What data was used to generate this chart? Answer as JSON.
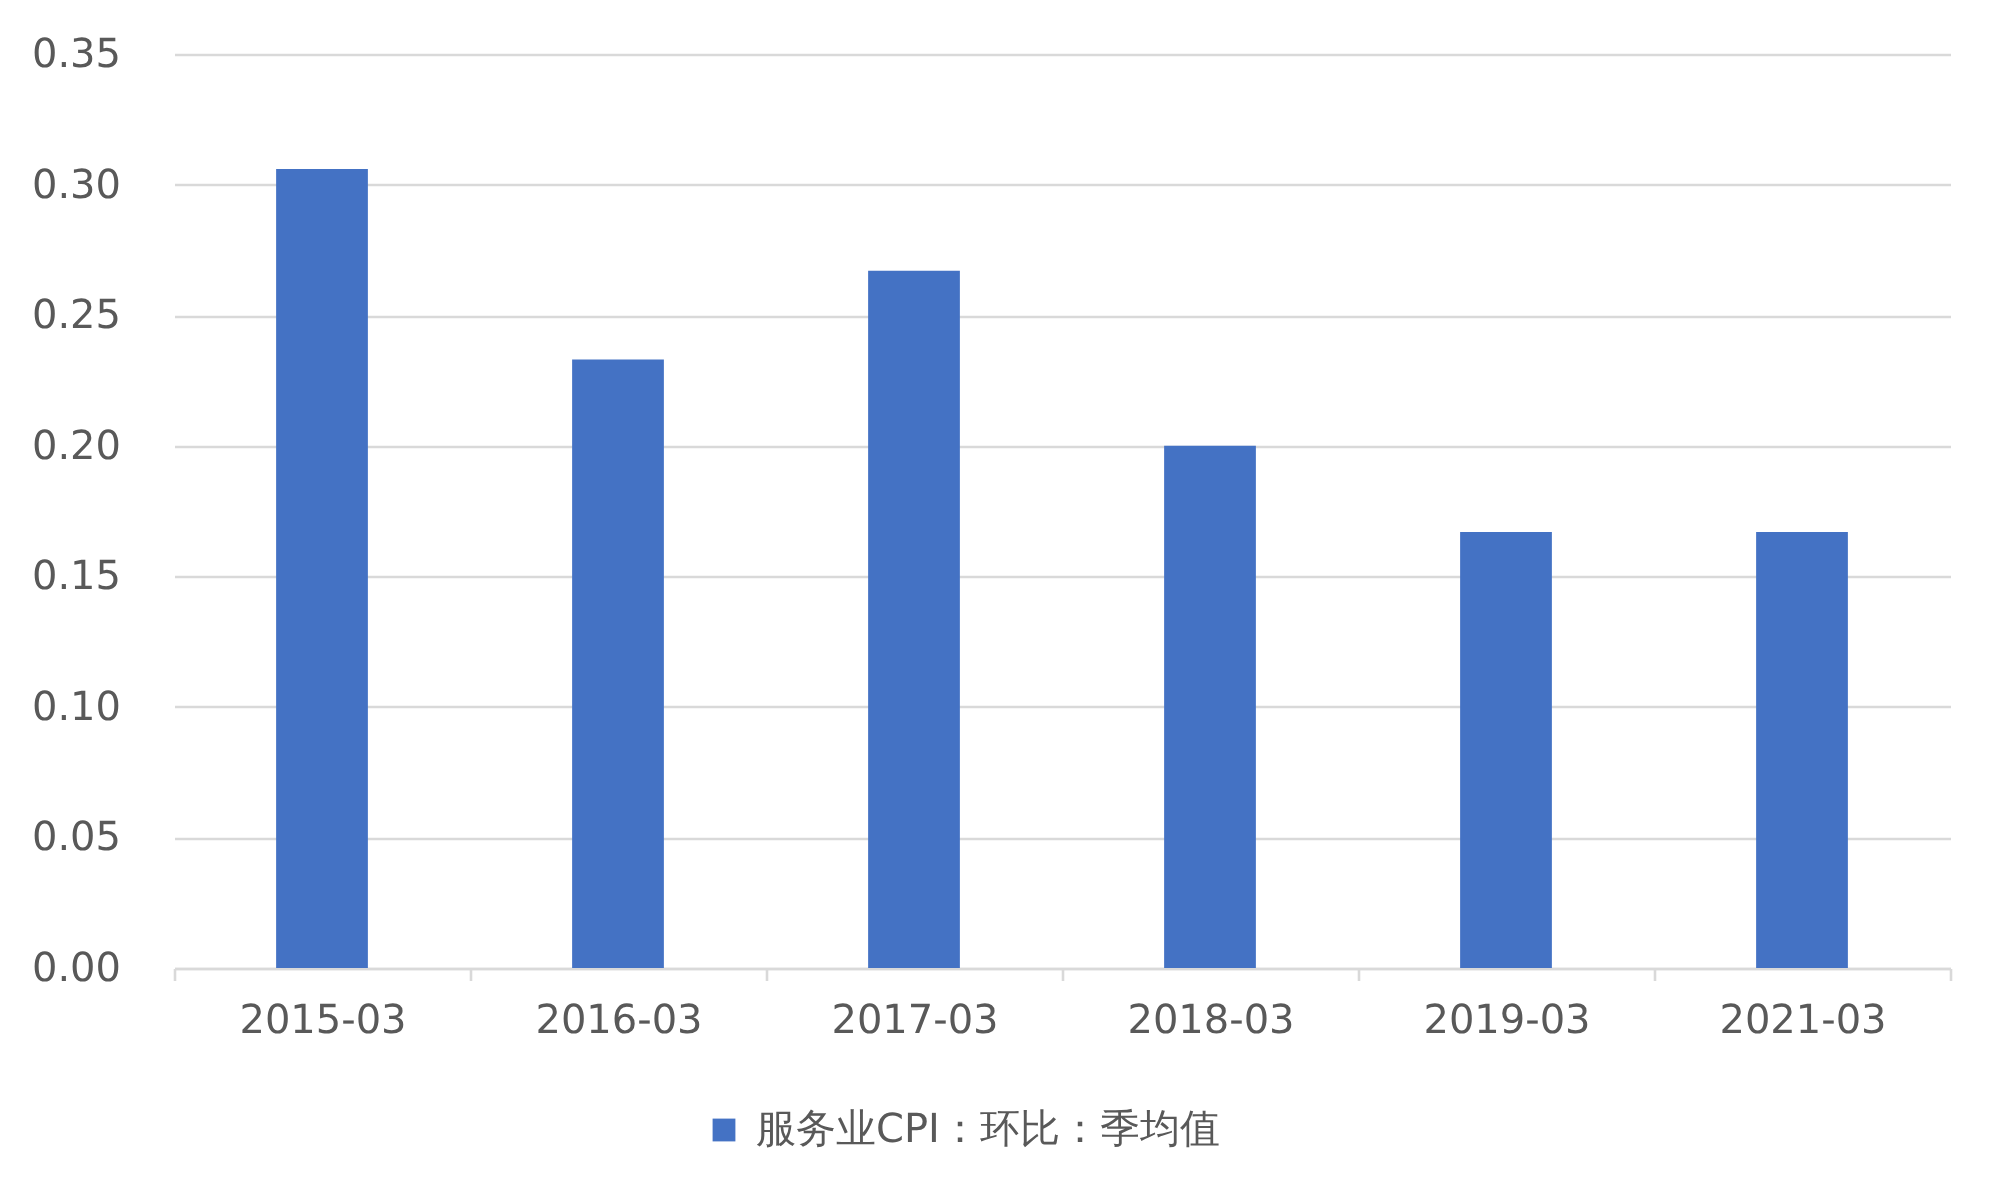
{
  "chart_data": {
    "type": "bar",
    "categories": [
      "2015-03",
      "2016-03",
      "2017-03",
      "2018-03",
      "2019-03",
      "2021-03"
    ],
    "series": [
      {
        "name": "服务业CPI：环比：季均值",
        "color": "#4472c4",
        "values": [
          0.306,
          0.233,
          0.267,
          0.2,
          0.167,
          0.167
        ]
      }
    ],
    "ylim": [
      0,
      0.35
    ],
    "yticks": [
      {
        "value": 0,
        "label": "0.00"
      },
      {
        "value": 0.05,
        "label": "0.05"
      },
      {
        "value": 0.1,
        "label": "0.10"
      },
      {
        "value": 0.15,
        "label": "0.15"
      },
      {
        "value": 0.2,
        "label": "0.20"
      },
      {
        "value": 0.25,
        "label": "0.25"
      },
      {
        "value": 0.3,
        "label": "0.30"
      },
      {
        "value": 0.35,
        "label": "0.35"
      }
    ],
    "grid": "y",
    "legend": "bottom"
  }
}
